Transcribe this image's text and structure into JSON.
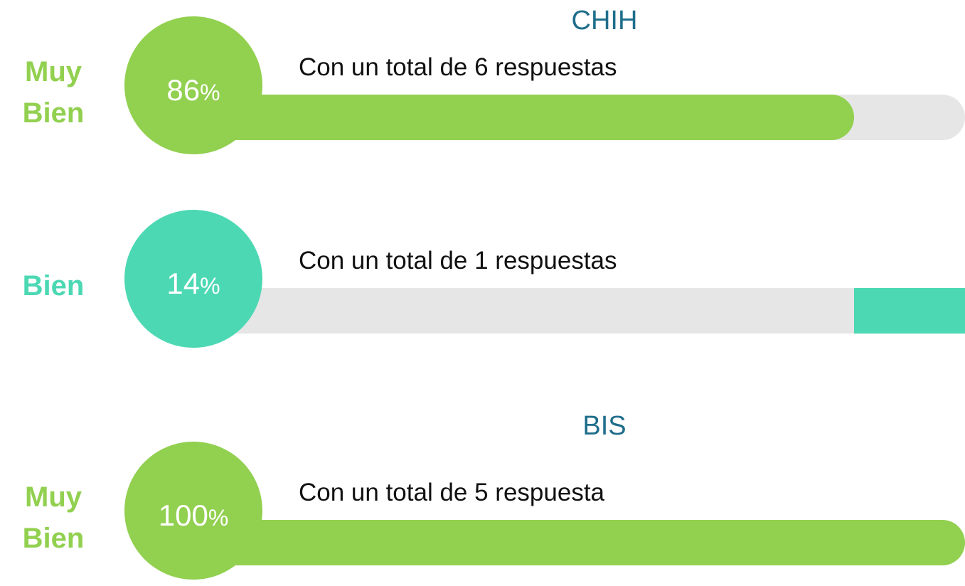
{
  "sections": [
    {
      "title": "CHIH",
      "items": [
        {
          "label": "Muy Bien",
          "value": 86,
          "unit": "%",
          "caption": "Con un total de 6 respuestas",
          "color": "#92d050",
          "fill_from": "left"
        },
        {
          "label": "Bien",
          "value": 14,
          "unit": "%",
          "caption": "Con un total de 1 respuestas",
          "color": "#4dd8b4",
          "fill_from": "right"
        }
      ]
    },
    {
      "title": "BIS",
      "items": [
        {
          "label": "Muy Bien",
          "value": 100,
          "unit": "%",
          "caption": "Con un total de 5 respuesta",
          "color": "#92d050",
          "fill_from": "left"
        }
      ]
    }
  ]
}
